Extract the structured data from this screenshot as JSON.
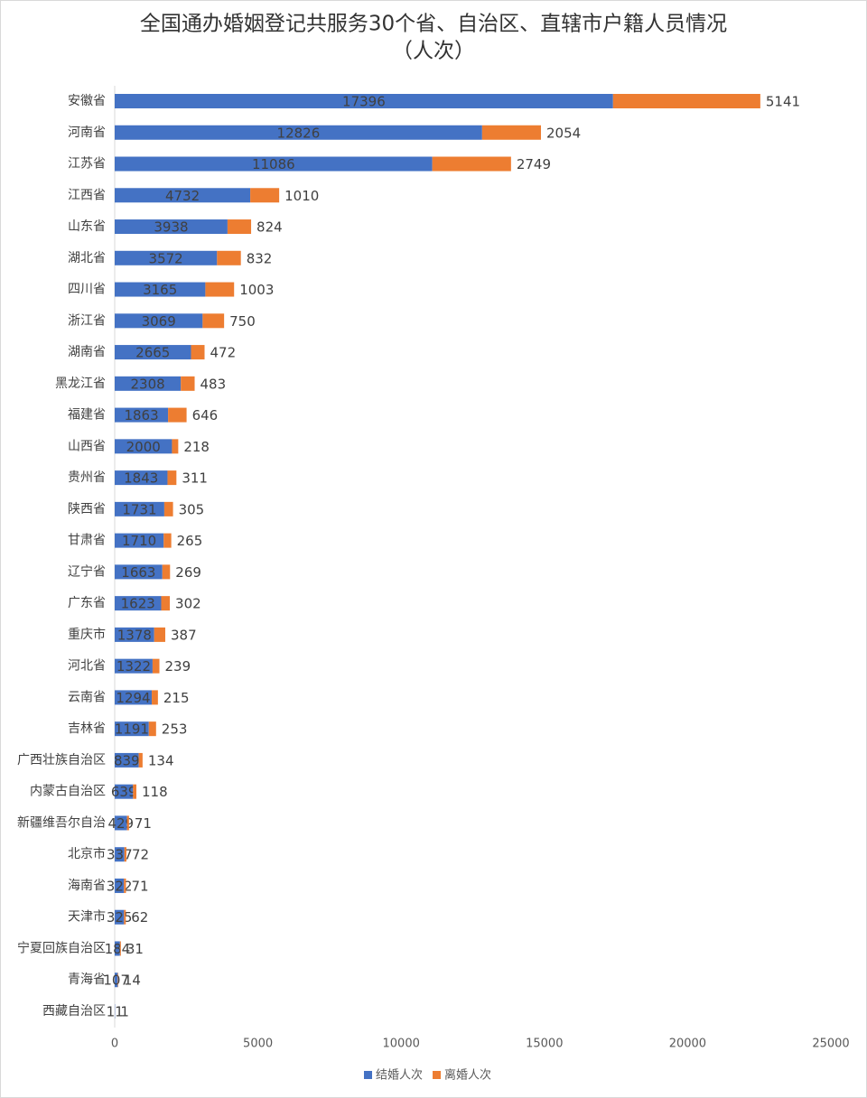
{
  "chart_data": {
    "type": "stacked-bar-horizontal",
    "title": "全国通办婚姻登记共服务30个省、自治区、直辖市户籍人员情况",
    "subtitle": "（人次）",
    "categories": [
      "安徽省",
      "河南省",
      "江苏省",
      "江西省",
      "山东省",
      "湖北省",
      "四川省",
      "浙江省",
      "湖南省",
      "黑龙江省",
      "福建省",
      "山西省",
      "贵州省",
      "陕西省",
      "甘肃省",
      "辽宁省",
      "广东省",
      "重庆市",
      "河北省",
      "云南省",
      "吉林省",
      "广西壮族自治区",
      "内蒙古自治区",
      "新疆维吾尔自治",
      "北京市",
      "海南省",
      "天津市",
      "宁夏回族自治区",
      "青海省",
      "西藏自治区"
    ],
    "series": [
      {
        "name": "结婚人次",
        "color": "#4472c4",
        "values": [
          17396,
          12826,
          11086,
          4732,
          3938,
          3572,
          3165,
          3069,
          2665,
          2308,
          1863,
          2000,
          1843,
          1731,
          1710,
          1663,
          1623,
          1378,
          1322,
          1294,
          1191,
          839,
          639,
          429,
          337,
          322,
          325,
          184,
          107,
          11
        ]
      },
      {
        "name": "离婚人次",
        "color": "#ed7d31",
        "values": [
          5141,
          2054,
          2749,
          1010,
          824,
          832,
          1003,
          750,
          472,
          483,
          646,
          218,
          311,
          305,
          265,
          269,
          302,
          387,
          239,
          215,
          253,
          134,
          118,
          71,
          72,
          71,
          62,
          31,
          14,
          1
        ]
      }
    ],
    "xlim": [
      0,
      25000
    ],
    "xticks": [
      0,
      5000,
      10000,
      15000,
      20000,
      25000
    ],
    "legend": "bottom"
  }
}
